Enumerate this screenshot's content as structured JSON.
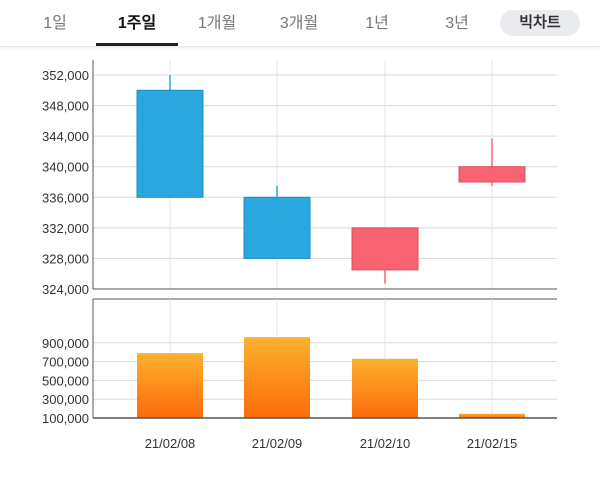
{
  "tabs": [
    {
      "label": "1일",
      "active": false
    },
    {
      "label": "1주일",
      "active": true
    },
    {
      "label": "1개월",
      "active": false
    },
    {
      "label": "3개월",
      "active": false
    },
    {
      "label": "1년",
      "active": false
    },
    {
      "label": "3년",
      "active": false
    }
  ],
  "big_chart_label": "빅차트",
  "chart_data": [
    {
      "type": "candlestick",
      "categories": [
        "21/02/08",
        "21/02/09",
        "21/02/10",
        "21/02/15"
      ],
      "ohlc": [
        {
          "open": 350000,
          "high": 352000,
          "low": 336000,
          "close": 336000
        },
        {
          "open": 336000,
          "high": 337500,
          "low": 328000,
          "close": 328000
        },
        {
          "open": 326500,
          "high": 332000,
          "low": 324700,
          "close": 332000
        },
        {
          "open": 338000,
          "high": 343700,
          "low": 337500,
          "close": 340000
        }
      ],
      "y_ticks": [
        "352,000",
        "348,000",
        "344,000",
        "340,000",
        "336,000",
        "332,000",
        "328,000",
        "324,000"
      ],
      "ylim": [
        324000,
        352000
      ],
      "colors": {
        "down": "#29a8e0",
        "up": "#f96270"
      },
      "grid": true
    },
    {
      "type": "bar",
      "categories": [
        "21/02/08",
        "21/02/09",
        "21/02/10",
        "21/02/15"
      ],
      "values": [
        790000,
        960000,
        730000,
        145000
      ],
      "y_ticks": [
        "900,000",
        "700,000",
        "500,000",
        "300,000",
        "100,000"
      ],
      "ylim": [
        100000,
        1100000
      ],
      "colors": {
        "bar_top": "#fbb12e",
        "bar_bottom": "#fd6b0b"
      },
      "grid": true
    }
  ],
  "x_labels": [
    "21/02/08",
    "21/02/09",
    "21/02/10",
    "21/02/15"
  ]
}
